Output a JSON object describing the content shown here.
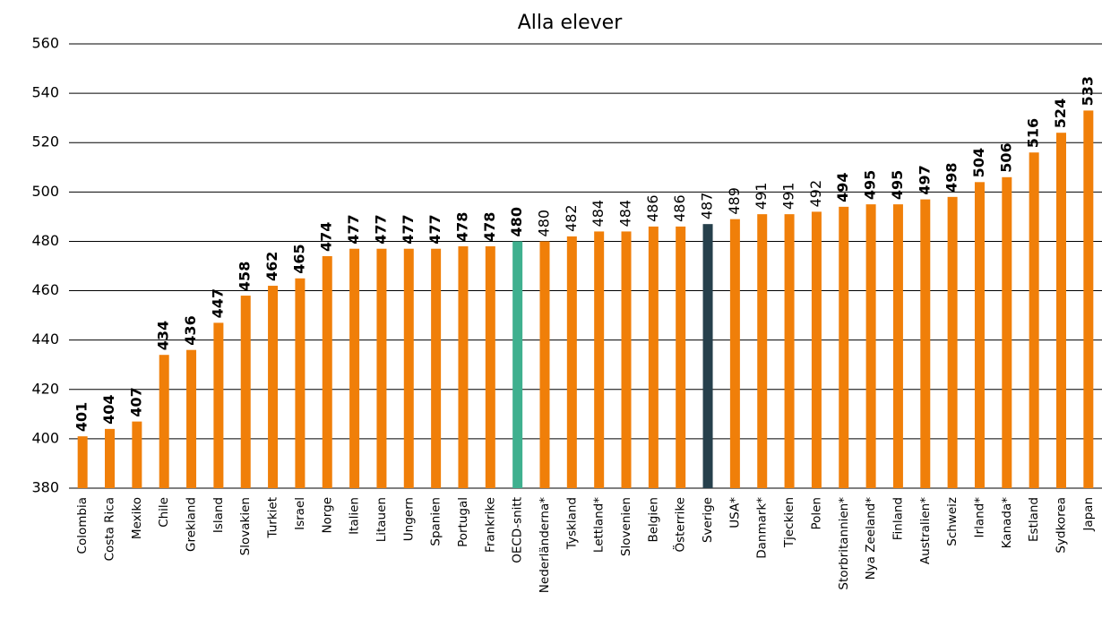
{
  "chart_data": {
    "type": "bar",
    "title": "Alla elever",
    "categories": [
      "Colombia",
      "Costa Rica",
      "Mexiko",
      "Chile",
      "Grekland",
      "Island",
      "Slovakien",
      "Turkiet",
      "Israel",
      "Norge",
      "Italien",
      "Litauen",
      "Ungern",
      "Spanien",
      "Portugal",
      "Frankrike",
      "OECD-snitt",
      "Nederländerna*",
      "Tyskland",
      "Lettland*",
      "Slovenien",
      "Belgien",
      "Österrike",
      "Sverige",
      "USA*",
      "Danmark*",
      "Tjeckien",
      "Polen",
      "Storbritannien*",
      "Nya Zeeland*",
      "Finland",
      "Australien*",
      "Schweiz",
      "Irland*",
      "Kanada*",
      "Estland",
      "Sydkorea",
      "Japan"
    ],
    "values": [
      401,
      404,
      407,
      434,
      436,
      447,
      458,
      462,
      465,
      474,
      477,
      477,
      477,
      477,
      478,
      478,
      480,
      480,
      482,
      484,
      484,
      486,
      486,
      487,
      489,
      491,
      491,
      492,
      494,
      495,
      495,
      497,
      498,
      504,
      506,
      516,
      524,
      533
    ],
    "colors": [
      "#f07f09",
      "#f07f09",
      "#f07f09",
      "#f07f09",
      "#f07f09",
      "#f07f09",
      "#f07f09",
      "#f07f09",
      "#f07f09",
      "#f07f09",
      "#f07f09",
      "#f07f09",
      "#f07f09",
      "#f07f09",
      "#f07f09",
      "#f07f09",
      "#3fb08f",
      "#f07f09",
      "#f07f09",
      "#f07f09",
      "#f07f09",
      "#f07f09",
      "#f07f09",
      "#26404c",
      "#f07f09",
      "#f07f09",
      "#f07f09",
      "#f07f09",
      "#f07f09",
      "#f07f09",
      "#f07f09",
      "#f07f09",
      "#f07f09",
      "#f07f09",
      "#f07f09",
      "#f07f09",
      "#f07f09",
      "#f07f09"
    ],
    "bold_labels": [
      true,
      true,
      true,
      true,
      true,
      true,
      true,
      true,
      true,
      true,
      true,
      true,
      true,
      true,
      true,
      true,
      true,
      false,
      false,
      false,
      false,
      false,
      false,
      false,
      false,
      false,
      false,
      false,
      true,
      true,
      true,
      true,
      true,
      true,
      true,
      true,
      true,
      true
    ],
    "ylim": [
      380,
      560
    ],
    "yticks": [
      380,
      400,
      420,
      440,
      460,
      480,
      500,
      520,
      540,
      560
    ],
    "grid": true
  }
}
